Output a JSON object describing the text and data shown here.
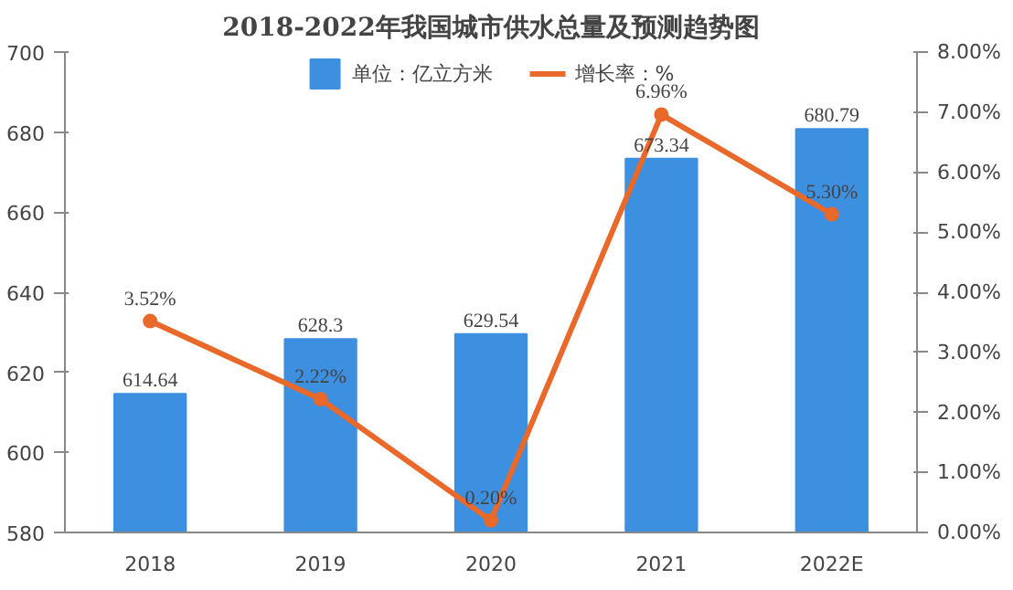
{
  "chart_data": {
    "type": "bar",
    "title": "2018-2022年我国城市供水总量及预测趋势图",
    "categories": [
      "2018",
      "2019",
      "2020",
      "2021",
      "2022E"
    ],
    "series": [
      {
        "name": "单位：亿立方米",
        "color": "#3d8fe0",
        "values": [
          614.64,
          628.3,
          629.54,
          673.34,
          680.79
        ],
        "value_labels": [
          "614.64",
          "628.3",
          "629.54",
          "673.34",
          "680.79"
        ]
      },
      {
        "name": "增长率：%",
        "type": "line",
        "axis": "y2",
        "color": "#e8692a",
        "marker": "circle",
        "values": [
          3.52,
          2.22,
          0.2,
          6.96,
          5.3
        ],
        "value_labels": [
          "3.52%",
          "2.22%",
          "0.20%",
          "6.96%",
          "5.30%"
        ]
      }
    ],
    "ylim": [
      580,
      700
    ],
    "yticks": [
      580,
      600,
      620,
      640,
      660,
      680,
      700
    ],
    "y2lim": [
      0,
      8
    ],
    "y2ticks": [
      {
        "value": 0,
        "label": "0.00%"
      },
      {
        "value": 1,
        "label": "1.00%"
      },
      {
        "value": 2,
        "label": "2.00%"
      },
      {
        "value": 3,
        "label": "3.00%"
      },
      {
        "value": 4,
        "label": "4.00%"
      },
      {
        "value": 5,
        "label": "5.00%"
      },
      {
        "value": 6,
        "label": "6.00%"
      },
      {
        "value": 7,
        "label": "7.00%"
      },
      {
        "value": 8,
        "label": "8.00%"
      }
    ],
    "legend": "top",
    "grid": false
  }
}
